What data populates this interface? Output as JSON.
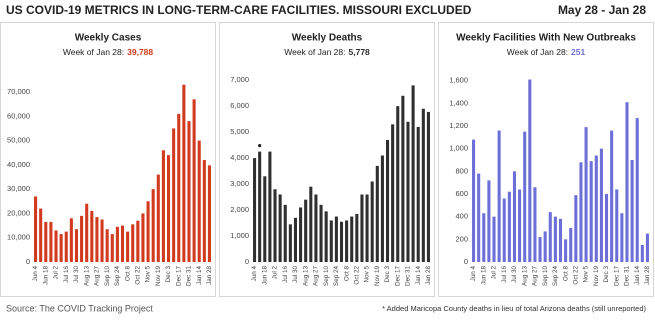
{
  "header": {
    "title": "US COVID-19 METRICS IN LONG-TERM-CARE FACILITIES. MISSOURI EXCLUDED",
    "date_range": "May 28 - Jan 28"
  },
  "footer": {
    "source": "Source: The COVID Tracking Project",
    "note": "* Added Maricopa County deaths in lieu of total Arizona deaths (still unreported)"
  },
  "chart_data": [
    {
      "type": "bar",
      "title": "Weekly Cases",
      "subtitle": "Week of Jan 28:",
      "highlight": "39,788",
      "color": "#d13a1e",
      "categories": [
        "Jun 4",
        null,
        "Jun 18",
        null,
        "Jul 2",
        null,
        "Jul 16",
        null,
        "Jul 30",
        null,
        "Aug 13",
        null,
        "Aug 27",
        null,
        "Sep 10",
        null,
        "Sep 24",
        null,
        "Oct 8",
        null,
        "Oct 22",
        null,
        "Nov 5",
        null,
        "Nov 19",
        null,
        "Dec 3",
        null,
        "Dec 17",
        null,
        "Dec 31",
        null,
        "Jan 14",
        null,
        "Jan 28"
      ],
      "values": [
        27000,
        22000,
        16500,
        16500,
        13000,
        11500,
        12500,
        18000,
        13500,
        19000,
        24000,
        21000,
        18500,
        17500,
        13500,
        11500,
        14500,
        15000,
        12500,
        15500,
        17000,
        20000,
        25000,
        30000,
        36000,
        46000,
        44000,
        55000,
        61000,
        73000,
        58000,
        67000,
        50000,
        42000,
        39788
      ],
      "ylim": [
        0,
        77000
      ],
      "yticks": [
        0,
        {
          "value": 10000,
          "label": "10,000"
        },
        {
          "value": 20000,
          "label": "20,000"
        },
        {
          "value": 30000,
          "label": "30,000"
        },
        {
          "value": 40000,
          "label": "40,000"
        },
        {
          "value": 50000,
          "label": "50,000"
        },
        {
          "value": 60000,
          "label": "60,000"
        },
        {
          "value": 70000,
          "label": "70,000"
        }
      ]
    },
    {
      "type": "bar",
      "title": "Weekly Deaths",
      "subtitle": "Week of Jan 28:",
      "highlight": "5,778",
      "color": "#2f2f2f",
      "categories": [
        "Jun 4",
        null,
        "Jun 18",
        null,
        "Jul 2",
        null,
        "Jul 16",
        null,
        "Jul 30",
        null,
        "Aug 13",
        null,
        "Aug 27",
        null,
        "Sep 10",
        null,
        "Sep 24",
        null,
        "Oct 8",
        null,
        "Oct 22",
        null,
        "Nov 5",
        null,
        "Nov 19",
        null,
        "Dec 3",
        null,
        "Dec 17",
        null,
        "Dec 31",
        null,
        "Jan 14",
        null,
        "Jan 28"
      ],
      "values": [
        4000,
        4250,
        3300,
        4250,
        2800,
        2600,
        2200,
        1450,
        1700,
        2100,
        2400,
        2900,
        2600,
        2200,
        1950,
        1600,
        1750,
        1550,
        1600,
        1750,
        1850,
        2600,
        2600,
        3100,
        3700,
        4100,
        4700,
        5300,
        6000,
        6400,
        5400,
        6800,
        5200,
        5900,
        5778
      ],
      "ylim": [
        0,
        7200
      ],
      "yticks": [
        0,
        {
          "value": 1000,
          "label": "1,000"
        },
        {
          "value": 2000,
          "label": "2,000"
        },
        {
          "value": 3000,
          "label": "3,000"
        },
        {
          "value": 4000,
          "label": "4,000"
        },
        {
          "value": 5000,
          "label": "5,000"
        },
        {
          "value": 6000,
          "label": "6,000"
        },
        {
          "value": 7000,
          "label": "7,000"
        }
      ]
    },
    {
      "type": "bar",
      "title": "Weekly Facilities With New Outbreaks",
      "subtitle": "Week of Jan 28:",
      "highlight": "251",
      "color": "#6d6fd8",
      "categories": [
        "Jun 4",
        null,
        "Jun 18",
        null,
        "Jul 2",
        null,
        "Jul 16",
        null,
        "Jul 30",
        null,
        "Aug 13",
        null,
        "Aug 27",
        null,
        "Sep 10",
        null,
        "Sep 24",
        null,
        "Oct 8",
        null,
        "Oct 22",
        null,
        "Nov 5",
        null,
        "Nov 19",
        null,
        "Dec 3",
        null,
        "Dec 17",
        null,
        "Dec 31",
        null,
        "Jan 14",
        null,
        "Jan 28"
      ],
      "values": [
        1080,
        780,
        430,
        720,
        400,
        1160,
        560,
        620,
        800,
        640,
        1150,
        1610,
        660,
        220,
        270,
        440,
        400,
        380,
        200,
        300,
        590,
        880,
        1190,
        890,
        940,
        1000,
        600,
        1160,
        640,
        430,
        1410,
        900,
        1270,
        150,
        251
      ],
      "ylim": [
        0,
        1650
      ],
      "yticks": [
        0,
        200,
        400,
        600,
        800,
        {
          "value": 1000,
          "label": "1,000"
        },
        {
          "value": 1200,
          "label": "1,200"
        },
        {
          "value": 1400,
          "label": "1,400"
        },
        {
          "value": 1600,
          "label": "1,600"
        }
      ]
    }
  ]
}
